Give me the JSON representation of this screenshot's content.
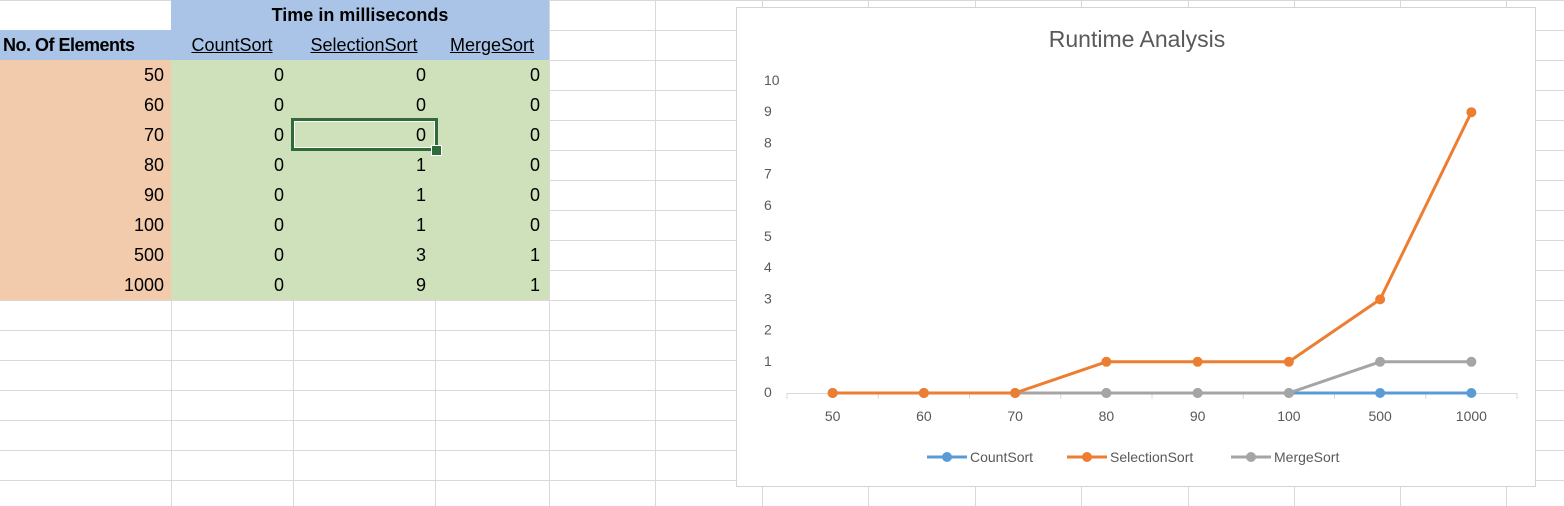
{
  "sheet": {
    "group_header": "Time in milliseconds",
    "row_header_label": "No. Of Elements",
    "columns": [
      "CountSort",
      "SelectionSort",
      "MergeSort"
    ],
    "rows": [
      {
        "n": "50",
        "count": "0",
        "selection": "0",
        "merge": "0"
      },
      {
        "n": "60",
        "count": "0",
        "selection": "0",
        "merge": "0"
      },
      {
        "n": "70",
        "count": "0",
        "selection": "0",
        "merge": "0"
      },
      {
        "n": "80",
        "count": "0",
        "selection": "1",
        "merge": "0"
      },
      {
        "n": "90",
        "count": "0",
        "selection": "1",
        "merge": "0"
      },
      {
        "n": "100",
        "count": "0",
        "selection": "1",
        "merge": "0"
      },
      {
        "n": "500",
        "count": "0",
        "selection": "3",
        "merge": "1"
      },
      {
        "n": "1000",
        "count": "0",
        "selection": "9",
        "merge": "1"
      }
    ],
    "colors": {
      "header_blue": "#a9c4e6",
      "left_peach": "#f2cbad",
      "data_green": "#cfe1bb",
      "selection_border": "#2f6b3a"
    }
  },
  "chart_data": {
    "type": "line",
    "title": "Runtime Analysis",
    "categories": [
      "50",
      "60",
      "70",
      "80",
      "90",
      "100",
      "500",
      "1000"
    ],
    "series": [
      {
        "name": "CountSort",
        "values": [
          0,
          0,
          0,
          0,
          0,
          0,
          0,
          0
        ],
        "color": "#5b9bd5"
      },
      {
        "name": "SelectionSort",
        "values": [
          0,
          0,
          0,
          1,
          1,
          1,
          3,
          9
        ],
        "color": "#ed7d31"
      },
      {
        "name": "MergeSort",
        "values": [
          0,
          0,
          0,
          0,
          0,
          0,
          1,
          1
        ],
        "color": "#a5a5a5"
      }
    ],
    "ylim": [
      0,
      10
    ],
    "yticks": [
      "0",
      "1",
      "2",
      "3",
      "4",
      "5",
      "6",
      "7",
      "8",
      "9",
      "10"
    ],
    "grid": false,
    "legend": "bottom"
  }
}
